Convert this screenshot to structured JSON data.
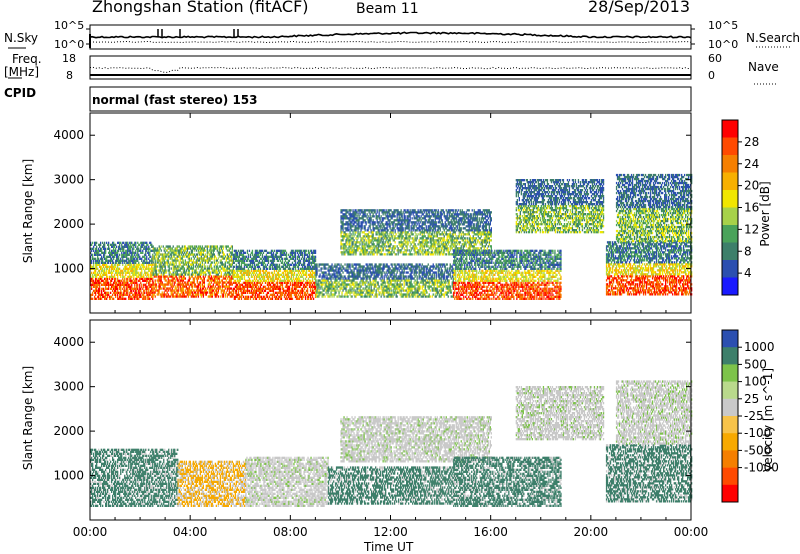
{
  "header": {
    "station": "Zhongshan Station (fitACF)",
    "beam": "Beam 11",
    "date": "28/Sep/2013"
  },
  "noise_panel": {
    "left_label": "N.Sky",
    "right_label": "N.Search",
    "left_ticks": [
      "10^5",
      "10^0"
    ],
    "right_ticks": [
      "10^5",
      "10^0"
    ]
  },
  "freq_panel": {
    "left_label_1": "Freq.",
    "left_label_2": "[MHz]",
    "right_label": "Nave",
    "left_ticks": [
      "18",
      "8"
    ],
    "right_ticks": [
      "60",
      "0"
    ]
  },
  "cpid_panel": {
    "label": "CPID",
    "text": "normal (fast stereo) 153"
  },
  "icons": {
    "legend_dotted": "dotted-line-icon"
  },
  "colors": {
    "power_scale": [
      "#1a1aff",
      "#2b4fb0",
      "#3d7f6a",
      "#4aa35a",
      "#a7d24a",
      "#f1e600",
      "#f7b000",
      "#f57f00",
      "#ff4a00",
      "#ff0000"
    ],
    "velocity_scale": [
      "#2b4fb0",
      "#3d7f6a",
      "#7dc34a",
      "#b9d98c",
      "#c9c9c9",
      "#f7c34a",
      "#f7a900",
      "#f57f00",
      "#ff4a00",
      "#ff0000"
    ]
  },
  "chart_data": [
    {
      "type": "heatmap",
      "name": "power",
      "ylabel": "Slant Range [km]",
      "xlabel": "Time UT",
      "ylim": [
        0,
        4500
      ],
      "y_ticks": [
        "1000",
        "2000",
        "3000",
        "4000"
      ],
      "y_tick_values": [
        1000,
        2000,
        3000,
        4000
      ],
      "x_ticks": [
        "00:00",
        "04:00",
        "08:00",
        "12:00",
        "16:00",
        "20:00",
        "00:00"
      ],
      "x_tick_values": [
        0,
        4,
        8,
        12,
        16,
        20,
        24
      ],
      "colorbar_label": "Power [dB]",
      "colorbar_ticks": [
        "4",
        "8",
        "12",
        "16",
        "20",
        "24",
        "28"
      ],
      "colorbar_range": [
        0,
        32
      ],
      "scatter_regions": [
        {
          "t0": 0.0,
          "t1": 2.5,
          "r0": 300,
          "r1": 1600,
          "level": "high"
        },
        {
          "t0": 2.5,
          "t1": 5.7,
          "r0": 350,
          "r1": 1500,
          "level": "mid"
        },
        {
          "t0": 5.7,
          "t1": 9.0,
          "r0": 300,
          "r1": 1400,
          "level": "high"
        },
        {
          "t0": 9.0,
          "t1": 14.5,
          "r0": 350,
          "r1": 1100,
          "level": "low"
        },
        {
          "t0": 10.0,
          "t1": 16.0,
          "r0": 1300,
          "r1": 2300,
          "level": "low"
        },
        {
          "t0": 14.5,
          "t1": 18.8,
          "r0": 300,
          "r1": 1400,
          "level": "high"
        },
        {
          "t0": 17.0,
          "t1": 20.5,
          "r0": 1800,
          "r1": 3000,
          "level": "low"
        },
        {
          "t0": 20.6,
          "t1": 24.0,
          "r0": 400,
          "r1": 1600,
          "level": "high"
        },
        {
          "t0": 21.0,
          "t1": 24.0,
          "r0": 1600,
          "r1": 3100,
          "level": "low"
        }
      ]
    },
    {
      "type": "heatmap",
      "name": "velocity",
      "ylabel": "Slant Range [km]",
      "xlabel": "Time UT",
      "ylim": [
        0,
        4500
      ],
      "y_ticks": [
        "1000",
        "2000",
        "3000",
        "4000"
      ],
      "y_tick_values": [
        1000,
        2000,
        3000,
        4000
      ],
      "x_ticks": [
        "00:00",
        "04:00",
        "08:00",
        "12:00",
        "16:00",
        "20:00",
        "00:00"
      ],
      "x_tick_values": [
        0,
        4,
        8,
        12,
        16,
        20,
        24
      ],
      "colorbar_label": "Velocity [m s^-1]",
      "colorbar_ticks": [
        "1000",
        "500",
        "100",
        "25",
        "-25",
        "-100",
        "-500",
        "-1000"
      ],
      "scatter_regions": [
        {
          "t0": 0.0,
          "t1": 3.5,
          "r0": 300,
          "r1": 1600,
          "kind": "green"
        },
        {
          "t0": 3.5,
          "t1": 6.2,
          "r0": 300,
          "r1": 1300,
          "kind": "orange"
        },
        {
          "t0": 6.2,
          "t1": 9.5,
          "r0": 300,
          "r1": 1400,
          "kind": "grey"
        },
        {
          "t0": 9.5,
          "t1": 14.5,
          "r0": 350,
          "r1": 1200,
          "kind": "green"
        },
        {
          "t0": 10.0,
          "t1": 16.0,
          "r0": 1300,
          "r1": 2300,
          "kind": "grey"
        },
        {
          "t0": 14.5,
          "t1": 18.8,
          "r0": 300,
          "r1": 1400,
          "kind": "green"
        },
        {
          "t0": 17.0,
          "t1": 20.5,
          "r0": 1800,
          "r1": 3000,
          "kind": "grey"
        },
        {
          "t0": 20.6,
          "t1": 24.0,
          "r0": 400,
          "r1": 1700,
          "kind": "green"
        },
        {
          "t0": 21.0,
          "t1": 24.0,
          "r0": 1700,
          "r1": 3100,
          "kind": "grey"
        }
      ]
    }
  ]
}
